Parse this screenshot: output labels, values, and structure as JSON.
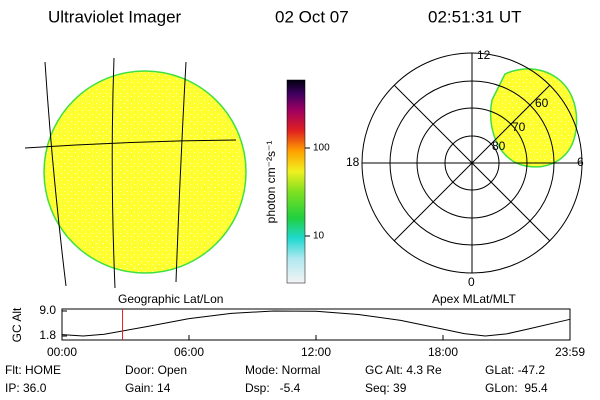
{
  "header": {
    "title": "Ultraviolet Imager",
    "date": "02 Oct 07",
    "time": "02:51:31 UT"
  },
  "colorbar": {
    "label": "photon cm⁻²s⁻¹",
    "ticks": [
      "100",
      "10"
    ]
  },
  "polar": {
    "mlt_labels": [
      "12",
      "18",
      "6",
      "0"
    ],
    "lat_labels": [
      "80",
      "70",
      "60"
    ]
  },
  "altitude_plot": {
    "ylabel": "GC Alt",
    "left_title": "Geographic Lat/Lon",
    "right_title": "Apex MLat/MLT",
    "xlim": [
      0,
      24
    ],
    "ylim": [
      1.8,
      9.0
    ],
    "yticks": [
      {
        "value": 9.0,
        "label": "9.0"
      },
      {
        "value": 1.8,
        "label": "1.8"
      }
    ],
    "xticks": [
      {
        "value": 0,
        "label": "00:00"
      },
      {
        "value": 6,
        "label": "06:00"
      },
      {
        "value": 12,
        "label": "12:00"
      },
      {
        "value": 18,
        "label": "18:00"
      },
      {
        "value": 24,
        "label": "23:59"
      }
    ],
    "x": [
      0,
      1,
      2,
      4,
      6,
      8,
      10,
      12,
      14,
      16,
      18,
      19,
      20,
      21,
      22,
      24
    ],
    "values": [
      2.2,
      1.8,
      2.3,
      4.5,
      6.8,
      8.3,
      9.0,
      8.9,
      8.0,
      6.3,
      3.8,
      2.5,
      1.8,
      2.4,
      3.8,
      6.6
    ],
    "marker": 2.86
  },
  "status": {
    "rows": [
      [
        "Flt: HOME",
        "Door: Open",
        "Mode: Normal",
        "GC Alt: 4.3 Re",
        "GLat: -47.2"
      ],
      [
        "IP: 36.0",
        "Gain: 14",
        "Dsp:   -5.4",
        "Seq: 39",
        "GLon:  95.4"
      ]
    ]
  }
}
